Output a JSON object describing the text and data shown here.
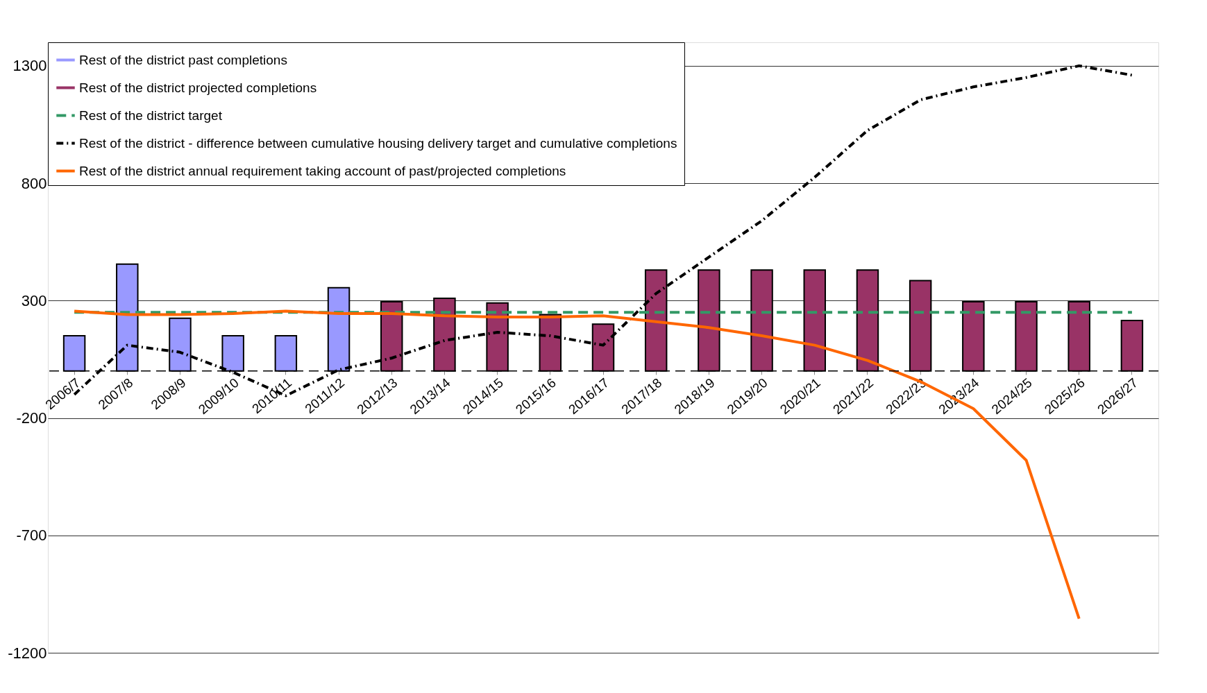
{
  "chart_data": {
    "type": "bar",
    "categories": [
      "2006/7",
      "2007/8",
      "2008/9",
      "2009/10",
      "2010/11",
      "2011/12",
      "2012/13",
      "2013/14",
      "2014/15",
      "2015/16",
      "2016/17",
      "2017/18",
      "2018/19",
      "2019/20",
      "2020/21",
      "2021/22",
      "2022/23",
      "2023/24",
      "2024/25",
      "2025/26",
      "2026/27"
    ],
    "series": [
      {
        "name": "Rest of the district past completions",
        "color": "#9999ff",
        "values": [
          150,
          455,
          225,
          150,
          150,
          355,
          null,
          null,
          null,
          null,
          null,
          null,
          null,
          null,
          null,
          null,
          null,
          null,
          null,
          null,
          null
        ]
      },
      {
        "name": "Rest of the district projected completions",
        "color": "#993366",
        "values": [
          null,
          null,
          null,
          null,
          null,
          null,
          295,
          310,
          290,
          240,
          200,
          430,
          430,
          430,
          430,
          430,
          385,
          295,
          295,
          295,
          215
        ]
      },
      {
        "name": "Rest of the district target",
        "type": "line",
        "color": "#339966",
        "line_style": "dashed",
        "values": [
          250,
          250,
          250,
          250,
          250,
          250,
          250,
          250,
          250,
          250,
          250,
          250,
          250,
          250,
          250,
          250,
          250,
          250,
          250,
          250,
          250
        ]
      },
      {
        "name": "Rest of the district - difference between cumulative housing delivery target and cumulative completions",
        "type": "line",
        "color": "#000000",
        "line_style": "dashdot",
        "values": [
          -100,
          110,
          80,
          -5,
          -105,
          5,
          55,
          130,
          165,
          150,
          110,
          330,
          485,
          640,
          825,
          1025,
          1155,
          1210,
          1250,
          1300,
          1260
        ]
      },
      {
        "name": "Rest of the district annual requirement taking account of past/projected completions",
        "type": "line",
        "color": "#ff6600",
        "line_style": "solid",
        "values": [
          255,
          240,
          240,
          245,
          255,
          245,
          245,
          235,
          230,
          230,
          235,
          210,
          185,
          150,
          110,
          45,
          -45,
          -160,
          -380,
          -1055,
          null
        ]
      }
    ],
    "ylim": [
      -1200,
      1400
    ],
    "yticks": [
      -1200,
      -700,
      -200,
      300,
      800,
      1300
    ],
    "grid": "y",
    "legend": "top left",
    "ref_lines": [
      {
        "axis": "y",
        "value": 0,
        "color": "#000000",
        "line_style": "dashed"
      }
    ]
  }
}
